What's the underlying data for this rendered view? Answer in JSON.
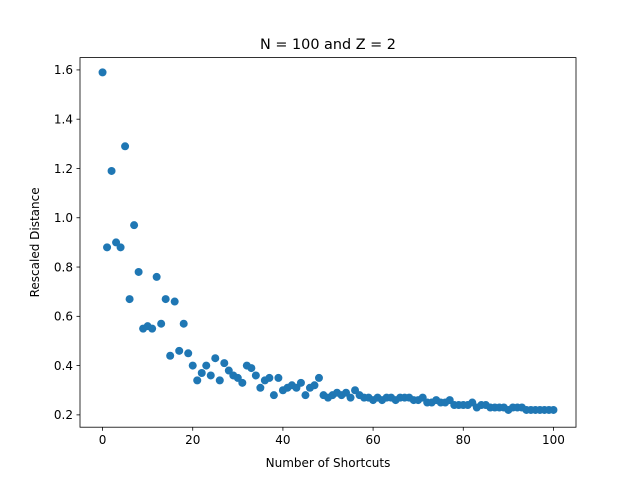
{
  "chart_data": {
    "type": "scatter",
    "title": "N = 100 and Z = 2",
    "xlabel": "Number of Shortcuts",
    "ylabel": "Rescaled Distance",
    "xlim": [
      -5,
      105
    ],
    "ylim": [
      0.15,
      1.65
    ],
    "xticks": [
      0,
      20,
      40,
      60,
      80,
      100
    ],
    "xtick_labels": [
      "0",
      "20",
      "40",
      "60",
      "80",
      "100"
    ],
    "yticks": [
      0.2,
      0.4,
      0.6,
      0.8,
      1.0,
      1.2,
      1.4,
      1.6
    ],
    "ytick_labels": [
      "0.2",
      "0.4",
      "0.6",
      "0.8",
      "1.0",
      "1.2",
      "1.4",
      "1.6"
    ],
    "grid": false,
    "marker_color": "#1f77b4",
    "series": [
      {
        "x": [
          0,
          1,
          2,
          3,
          4,
          5,
          6,
          7,
          8,
          9,
          10,
          11,
          12,
          13,
          14,
          15,
          16,
          17,
          18,
          19,
          20,
          21,
          22,
          23,
          24,
          25,
          26,
          27,
          28,
          29,
          30,
          31,
          32,
          33,
          34,
          35,
          36,
          37,
          38,
          39,
          40,
          41,
          42,
          43,
          44,
          45,
          46,
          47,
          48,
          49,
          50,
          51,
          52,
          53,
          54,
          55,
          56,
          57,
          58,
          59,
          60,
          61,
          62,
          63,
          64,
          65,
          66,
          67,
          68,
          69,
          70,
          71,
          72,
          73,
          74,
          75,
          76,
          77,
          78,
          79,
          80,
          81,
          82,
          83,
          84,
          85,
          86,
          87,
          88,
          89,
          90,
          91,
          92,
          93,
          94,
          95,
          96,
          97,
          98,
          99,
          100
        ],
        "y": [
          1.59,
          0.88,
          1.19,
          0.9,
          0.88,
          1.29,
          0.67,
          0.97,
          0.78,
          0.55,
          0.56,
          0.55,
          0.76,
          0.57,
          0.67,
          0.44,
          0.66,
          0.46,
          0.57,
          0.45,
          0.4,
          0.34,
          0.37,
          0.4,
          0.36,
          0.43,
          0.34,
          0.41,
          0.38,
          0.36,
          0.35,
          0.33,
          0.4,
          0.39,
          0.36,
          0.31,
          0.34,
          0.35,
          0.28,
          0.35,
          0.3,
          0.31,
          0.32,
          0.31,
          0.33,
          0.28,
          0.31,
          0.32,
          0.35,
          0.28,
          0.27,
          0.28,
          0.29,
          0.28,
          0.29,
          0.27,
          0.3,
          0.28,
          0.27,
          0.27,
          0.26,
          0.27,
          0.26,
          0.27,
          0.27,
          0.26,
          0.27,
          0.27,
          0.27,
          0.26,
          0.26,
          0.27,
          0.25,
          0.25,
          0.26,
          0.25,
          0.25,
          0.26,
          0.24,
          0.24,
          0.24,
          0.24,
          0.25,
          0.23,
          0.24,
          0.24,
          0.23,
          0.23,
          0.23,
          0.23,
          0.22,
          0.23,
          0.23,
          0.23,
          0.22,
          0.22,
          0.22,
          0.22,
          0.22,
          0.22,
          0.22
        ]
      }
    ]
  }
}
